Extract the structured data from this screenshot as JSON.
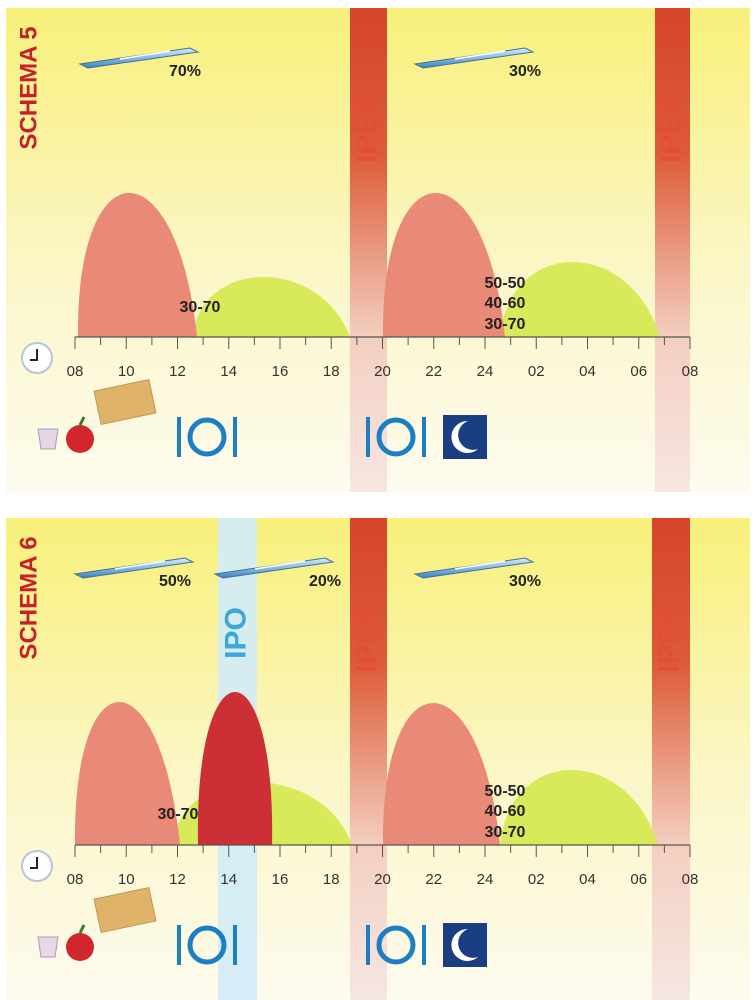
{
  "panels": [
    {
      "title": "SCHEMA 5",
      "doses": [
        "70%",
        "30%"
      ],
      "bands": [
        "IPER",
        "IPER"
      ],
      "curve_labels": [
        "30-70",
        "50-50",
        "40-60",
        "30-70"
      ],
      "ticks": [
        "08",
        "10",
        "12",
        "14",
        "16",
        "18",
        "20",
        "22",
        "24",
        "02",
        "04",
        "06",
        "08"
      ]
    },
    {
      "title": "SCHEMA 6",
      "doses": [
        "50%",
        "20%",
        "30%"
      ],
      "bands": [
        "IPO",
        "IPER",
        "IPER"
      ],
      "curve_labels": [
        "30-70",
        "50-50",
        "40-60",
        "30-70"
      ],
      "ticks": [
        "08",
        "10",
        "12",
        "14",
        "16",
        "18",
        "20",
        "22",
        "24",
        "02",
        "04",
        "06",
        "08"
      ]
    }
  ]
}
